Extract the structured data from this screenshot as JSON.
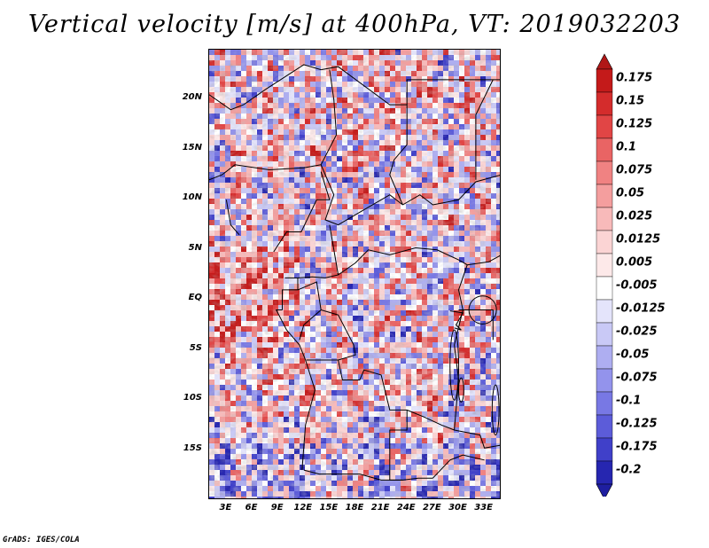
{
  "title": "Vertical velocity [m/s] at 400hPa, VT: 2019032203",
  "footer": "GrADS: IGES/COLA",
  "map": {
    "field": "Vertical velocity",
    "units": "m/s",
    "level": "400hPa",
    "valid_time": "2019032203",
    "lon_range": [
      1,
      35
    ],
    "lat_range": [
      -20,
      25
    ],
    "lat_labels": [
      {
        "text": "20N",
        "lat": 20
      },
      {
        "text": "15N",
        "lat": 15
      },
      {
        "text": "10N",
        "lat": 10
      },
      {
        "text": "5N",
        "lat": 5
      },
      {
        "text": "EQ",
        "lat": 0
      },
      {
        "text": "5S",
        "lat": -5
      },
      {
        "text": "10S",
        "lat": -10
      },
      {
        "text": "15S",
        "lat": -15
      }
    ],
    "lon_labels": [
      {
        "text": "3E",
        "lon": 3
      },
      {
        "text": "6E",
        "lon": 6
      },
      {
        "text": "9E",
        "lon": 9
      },
      {
        "text": "12E",
        "lon": 12
      },
      {
        "text": "15E",
        "lon": 15
      },
      {
        "text": "18E",
        "lon": 18
      },
      {
        "text": "21E",
        "lon": 21
      },
      {
        "text": "24E",
        "lon": 24
      },
      {
        "text": "27E",
        "lon": 27
      },
      {
        "text": "30E",
        "lon": 30
      },
      {
        "text": "33E",
        "lon": 33
      }
    ]
  },
  "colorbar": {
    "levels": [
      {
        "label": "0.175",
        "color": "#c41a1a"
      },
      {
        "label": "0.15",
        "color": "#d42c2c"
      },
      {
        "label": "0.125",
        "color": "#e14545"
      },
      {
        "label": "0.1",
        "color": "#e96464"
      },
      {
        "label": "0.075",
        "color": "#f08282"
      },
      {
        "label": "0.05",
        "color": "#f49e9e"
      },
      {
        "label": "0.025",
        "color": "#f8baba"
      },
      {
        "label": "0.0125",
        "color": "#fbd4d4"
      },
      {
        "label": "0.005",
        "color": "#fde9e9"
      },
      {
        "label": "-0.005",
        "color": "#ffffff"
      },
      {
        "label": "-0.0125",
        "color": "#e4e4fb"
      },
      {
        "label": "-0.025",
        "color": "#c9c9f6"
      },
      {
        "label": "-0.05",
        "color": "#aeaef1"
      },
      {
        "label": "-0.075",
        "color": "#9393ec"
      },
      {
        "label": "-0.1",
        "color": "#7878e4"
      },
      {
        "label": "-0.125",
        "color": "#5c5cd9"
      },
      {
        "label": "-0.175",
        "color": "#4040c9"
      },
      {
        "label": "-0.2",
        "color": "#2626b0"
      }
    ],
    "top_tip_color": "#b01717",
    "bottom_tip_color": "#1e1ea0"
  },
  "colors": {
    "positive_strong": "#d63b3b",
    "negative_strong": "#3d3dc8",
    "boundary": "#000000"
  }
}
